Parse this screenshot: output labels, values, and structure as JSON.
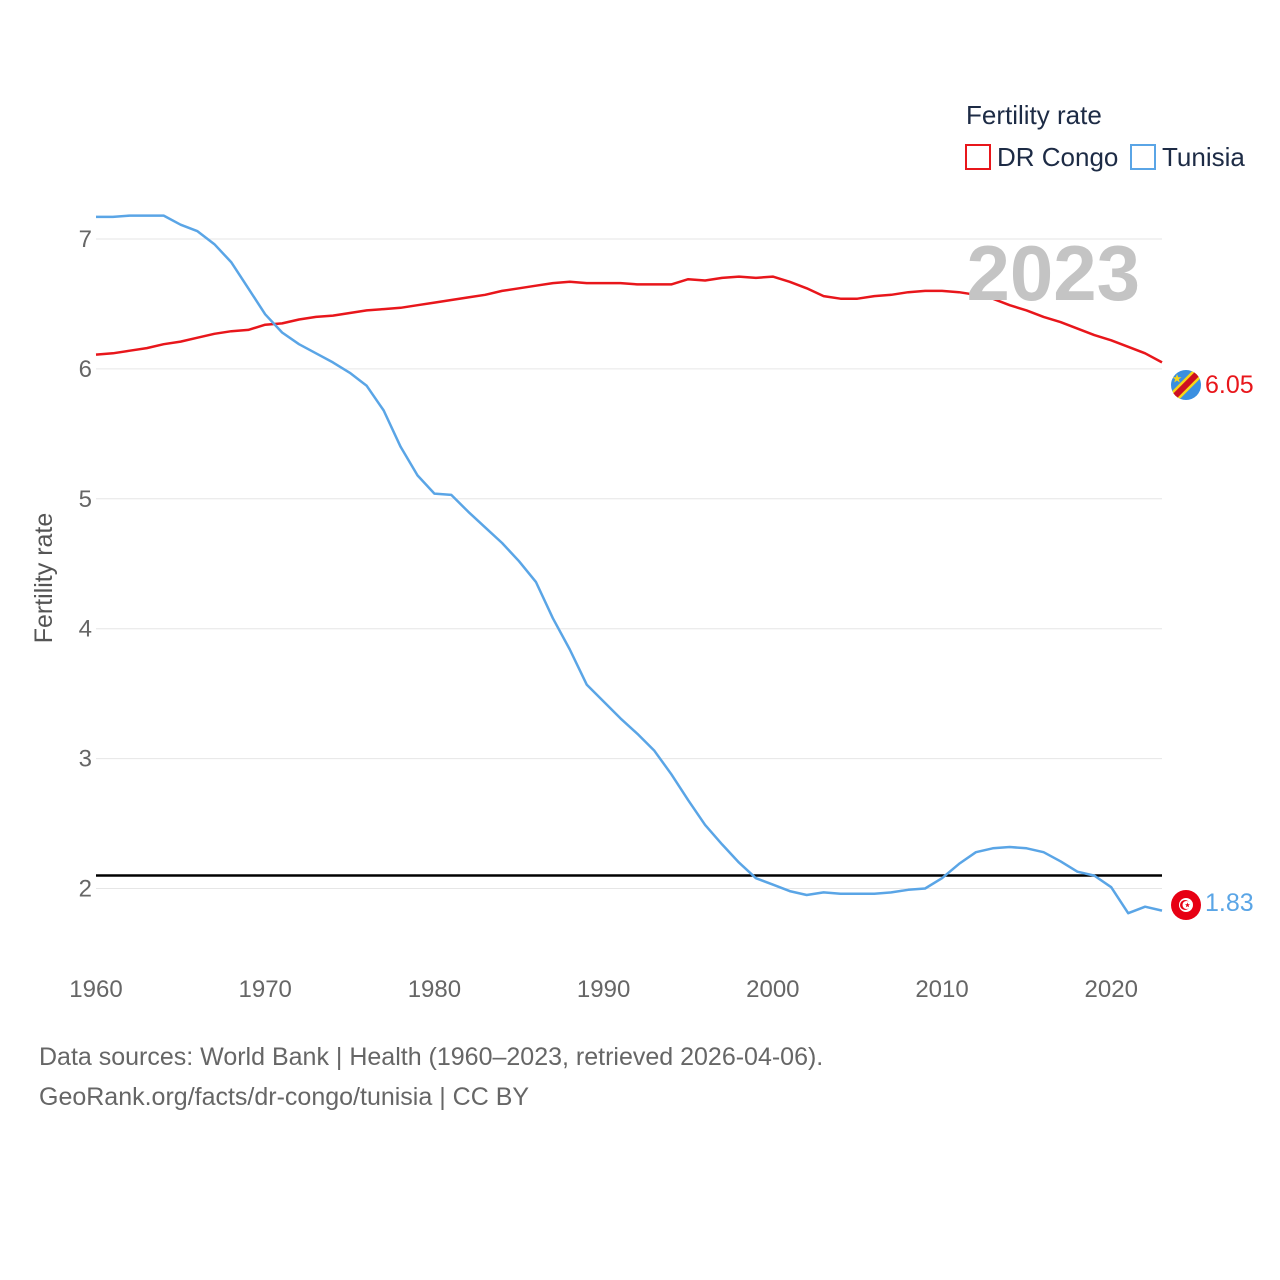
{
  "chart_data": {
    "type": "line",
    "title": "",
    "current_year": "2023",
    "xlabel": "",
    "ylabel": "Fertility rate",
    "xlim": [
      1960,
      2023
    ],
    "ylim": [
      1.45,
      7.3
    ],
    "x_ticks": [
      1960,
      1970,
      1980,
      1990,
      2000,
      2010,
      2020
    ],
    "y_ticks": [
      2,
      3,
      4,
      5,
      6,
      7
    ],
    "reference_line": 2.1,
    "grid": true,
    "legend": {
      "title": "Fertility rate",
      "position": "top-right"
    },
    "series": [
      {
        "name": "DR Congo",
        "color": "#e8161b",
        "end_label": "6.05",
        "flag_icon": "dr-congo-flag-icon",
        "x": [
          1960,
          1961,
          1962,
          1963,
          1964,
          1965,
          1966,
          1967,
          1968,
          1969,
          1970,
          1971,
          1972,
          1973,
          1974,
          1975,
          1976,
          1977,
          1978,
          1979,
          1980,
          1981,
          1982,
          1983,
          1984,
          1985,
          1986,
          1987,
          1988,
          1989,
          1990,
          1991,
          1992,
          1993,
          1994,
          1995,
          1996,
          1997,
          1998,
          1999,
          2000,
          2001,
          2002,
          2003,
          2004,
          2005,
          2006,
          2007,
          2008,
          2009,
          2010,
          2011,
          2012,
          2013,
          2014,
          2015,
          2016,
          2017,
          2018,
          2019,
          2020,
          2021,
          2022,
          2023
        ],
        "values": [
          6.11,
          6.12,
          6.14,
          6.16,
          6.19,
          6.21,
          6.24,
          6.27,
          6.29,
          6.3,
          6.34,
          6.35,
          6.38,
          6.4,
          6.41,
          6.43,
          6.45,
          6.46,
          6.47,
          6.49,
          6.51,
          6.53,
          6.55,
          6.57,
          6.6,
          6.62,
          6.64,
          6.66,
          6.67,
          6.66,
          6.66,
          6.66,
          6.65,
          6.65,
          6.65,
          6.69,
          6.68,
          6.7,
          6.71,
          6.7,
          6.71,
          6.67,
          6.62,
          6.56,
          6.54,
          6.54,
          6.56,
          6.57,
          6.59,
          6.6,
          6.6,
          6.59,
          6.57,
          6.54,
          6.49,
          6.45,
          6.4,
          6.36,
          6.31,
          6.26,
          6.22,
          6.17,
          6.12,
          6.05
        ]
      },
      {
        "name": "Tunisia",
        "color": "#5aa5e6",
        "end_label": "1.83",
        "flag_icon": "tunisia-flag-icon",
        "x": [
          1960,
          1961,
          1962,
          1963,
          1964,
          1965,
          1966,
          1967,
          1968,
          1969,
          1970,
          1971,
          1972,
          1973,
          1974,
          1975,
          1976,
          1977,
          1978,
          1979,
          1980,
          1981,
          1982,
          1983,
          1984,
          1985,
          1986,
          1987,
          1988,
          1989,
          1990,
          1991,
          1992,
          1993,
          1994,
          1995,
          1996,
          1997,
          1998,
          1999,
          2000,
          2001,
          2002,
          2003,
          2004,
          2005,
          2006,
          2007,
          2008,
          2009,
          2010,
          2011,
          2012,
          2013,
          2014,
          2015,
          2016,
          2017,
          2018,
          2019,
          2020,
          2021,
          2022,
          2023
        ],
        "values": [
          7.17,
          7.17,
          7.18,
          7.18,
          7.18,
          7.11,
          7.06,
          6.96,
          6.82,
          6.62,
          6.42,
          6.28,
          6.19,
          6.12,
          6.05,
          5.97,
          5.87,
          5.68,
          5.4,
          5.18,
          5.04,
          5.03,
          4.9,
          4.78,
          4.66,
          4.52,
          4.36,
          4.08,
          3.84,
          3.57,
          3.44,
          3.31,
          3.19,
          3.06,
          2.88,
          2.68,
          2.49,
          2.34,
          2.2,
          2.08,
          2.03,
          1.98,
          1.95,
          1.97,
          1.96,
          1.96,
          1.96,
          1.97,
          1.99,
          2.0,
          2.08,
          2.19,
          2.28,
          2.31,
          2.32,
          2.31,
          2.28,
          2.21,
          2.13,
          2.1,
          2.01,
          1.81,
          1.86,
          1.83
        ]
      }
    ]
  },
  "footer": {
    "line1": "Data sources: World Bank | Health (1960–2023, retrieved 2026-04-06).",
    "line2": "GeoRank.org/facts/dr-congo/tunisia | CC BY"
  }
}
